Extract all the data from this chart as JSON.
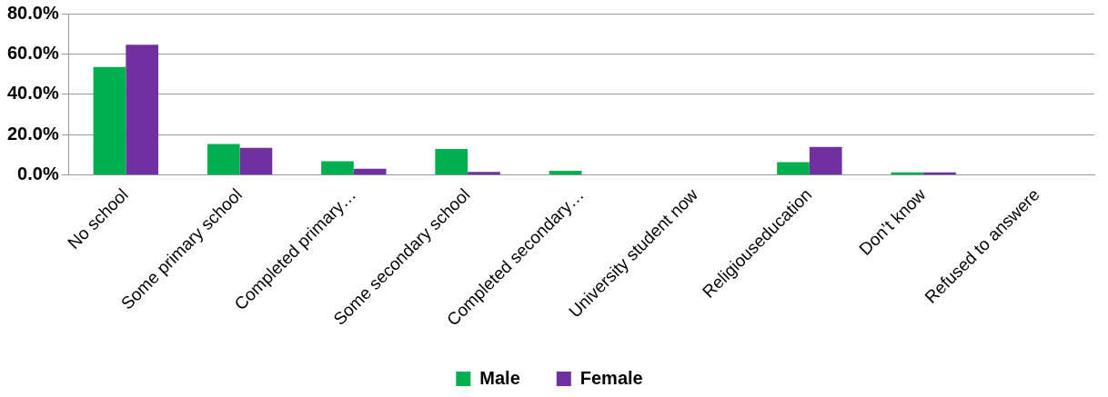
{
  "chart_data": {
    "type": "bar",
    "categories": [
      "No school",
      "Some primary school",
      "Completed primary…",
      "Some secondary school",
      "Completed secondary…",
      "University student now",
      "Religiouseducation",
      "Don’t know",
      "Refused to answere"
    ],
    "series": [
      {
        "name": "Male",
        "color": "#00b050",
        "values": [
          53.6,
          15.4,
          6.9,
          12.9,
          2.1,
          0,
          6.4,
          1.4,
          0
        ]
      },
      {
        "name": "Female",
        "color": "#7030a0",
        "values": [
          64.6,
          13.5,
          3.2,
          1.6,
          0,
          0,
          14.0,
          1.4,
          0
        ]
      }
    ],
    "ylim": [
      0,
      80
    ],
    "yticks": [
      {
        "value": 0,
        "label": "0.0%"
      },
      {
        "value": 20,
        "label": "20.0%"
      },
      {
        "value": 40,
        "label": "40.0%"
      },
      {
        "value": 60,
        "label": "60.0%"
      },
      {
        "value": 80,
        "label": "80.0%"
      }
    ],
    "grid": "y",
    "legend": "bottom"
  }
}
